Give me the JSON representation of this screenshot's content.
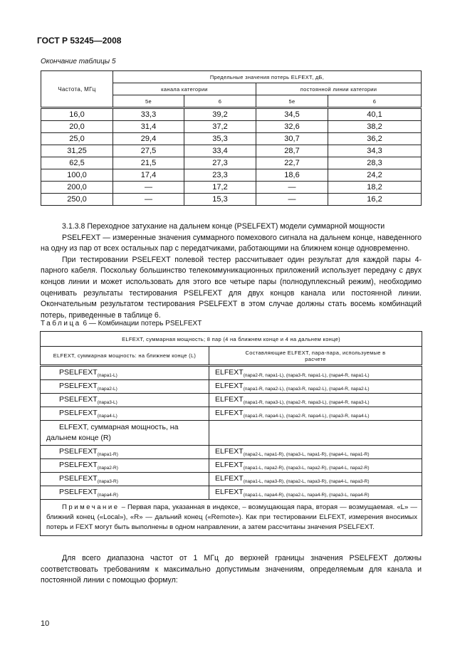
{
  "header": "ГОСТ Р 53245—2008",
  "table5": {
    "caption": "Окончание таблицы 5",
    "freq_header": "Частота, МГц",
    "group_header": "Предельные значения потерь ELFEXT, дБ,",
    "channel_header": "канала категории",
    "link_header": "постоянной линии категории",
    "cat_labels": [
      "5е",
      "6",
      "5е",
      "6"
    ],
    "rows": [
      [
        "16,0",
        "33,3",
        "39,2",
        "34,5",
        "40,1"
      ],
      [
        "20,0",
        "31,4",
        "37,2",
        "32,6",
        "38,2"
      ],
      [
        "25,0",
        "29,4",
        "35,3",
        "30,7",
        "36,2"
      ],
      [
        "31,25",
        "27,5",
        "33,4",
        "28,7",
        "34,3"
      ],
      [
        "62,5",
        "21,5",
        "27,3",
        "22,7",
        "28,3"
      ],
      [
        "100,0",
        "17,4",
        "23,3",
        "18,6",
        "24,2"
      ],
      [
        "200,0",
        "—",
        "17,2",
        "—",
        "18,2"
      ],
      [
        "250,0",
        "—",
        "15,3",
        "—",
        "16,2"
      ]
    ]
  },
  "section": {
    "title": "3.1.3.8 Переходное затухание на дальнем конце (PSELFEXT) модели суммарной мощности",
    "para1": "PSELFEXT — измеренные значения суммарного помехового сигнала на дальнем конце, наведенного на одну из пар от всех остальных пар с передатчиками, работающими на ближнем конце одновременно.",
    "para2": "При тестировании PSELFEXT полевой тестер рассчитывает один результат для каждой пары 4-парного кабеля. Поскольку большинство телекоммуникационных приложений использует передачу с двух концов линии и может использовать для этого все четыре пары (полнодуплексный режим), необходимо оценивать результаты тестирования PSELFEXT для двух концов канала или постоянной линии. Окончательным результатом тестирования PSELFEXT в этом случае должны стать восемь комбинаций потерь, приведенные в таблице 6."
  },
  "table6": {
    "caption_label": "Таблица",
    "caption_text": "6 — Комбинации потерь PSELFEXT",
    "top_header": "ELFEXT, суммарная мощность; 8 пар (4 на ближнем конце и 4 на дальнем конце)",
    "left_header": "ELFEXT, суммарная мощность: на ближнем конце (L)",
    "right_header": "Составляющие ELFEXT, пара-пара, используемые в расчете",
    "main_symbol": "PSELFEXT",
    "comp_symbol": "ELFEXT",
    "near_rows": [
      {
        "sub": "(пара1-L)",
        "comp": "(пара2-R, пара1-L), (пара3-R, пара1-L), (пара4-R, пара1-L)"
      },
      {
        "sub": "(пара2-L)",
        "comp": "(пара1-R, пара2-L), (пара3-R, пара2-L), (пара4-R, пара2-L)"
      },
      {
        "sub": "(пара3-L)",
        "comp": "(пара1-R, пара3-L), (пара2-R, пара3-L), (пара4-R, пара3-L)"
      },
      {
        "sub": "(пара4-L)",
        "comp": "(пара1-R, пара4-L), (пара2-R, пара4-L), (пара3-R, пара4-L)"
      }
    ],
    "far_header": "ELFEXT, суммарная мощность, на дальнем конце (R)",
    "far_rows": [
      {
        "sub": "(пара1-R)",
        "comp": "(пара2-L, пара1-R), (пара3-L, пара1-R), (пара4-L, пара1-R)"
      },
      {
        "sub": "(пара2-R)",
        "comp": "(пара1-L, пара2-R), (пара3-L, пара2-R), (пара4-L, пара2-R)"
      },
      {
        "sub": "(пара3-R)",
        "comp": "(пара1-L, пара3-R), (пара2-L, пара3-R), (пара4-L, пара3-R)"
      },
      {
        "sub": "(пара4-R)",
        "comp": "(пара1-L, пара4-R), (пара2-L, пара4-R), (пара3-L, пара4-R)"
      }
    ],
    "note_label": "Примечание",
    "note_text": " – Первая пара, указанная в индексе, – возмущающая пара, вторая — возмущаемая. «L» — ближний конец («Local»), «R» — дальний конец («Remote»). Как при тестировании ELFEXT, измерения вносимых потерь и FEXT могут быть выполнены в одном направлении, а затем рассчитаны значения PSELFEXT."
  },
  "para3": "Для всего диапазона частот от 1 МГц до верхней границы значения PSELFEXT должны соответствовать требованиям к максимально допустимым значениям, определяемым для канала и постоянной линии с помощью формул:",
  "page_number": "10"
}
